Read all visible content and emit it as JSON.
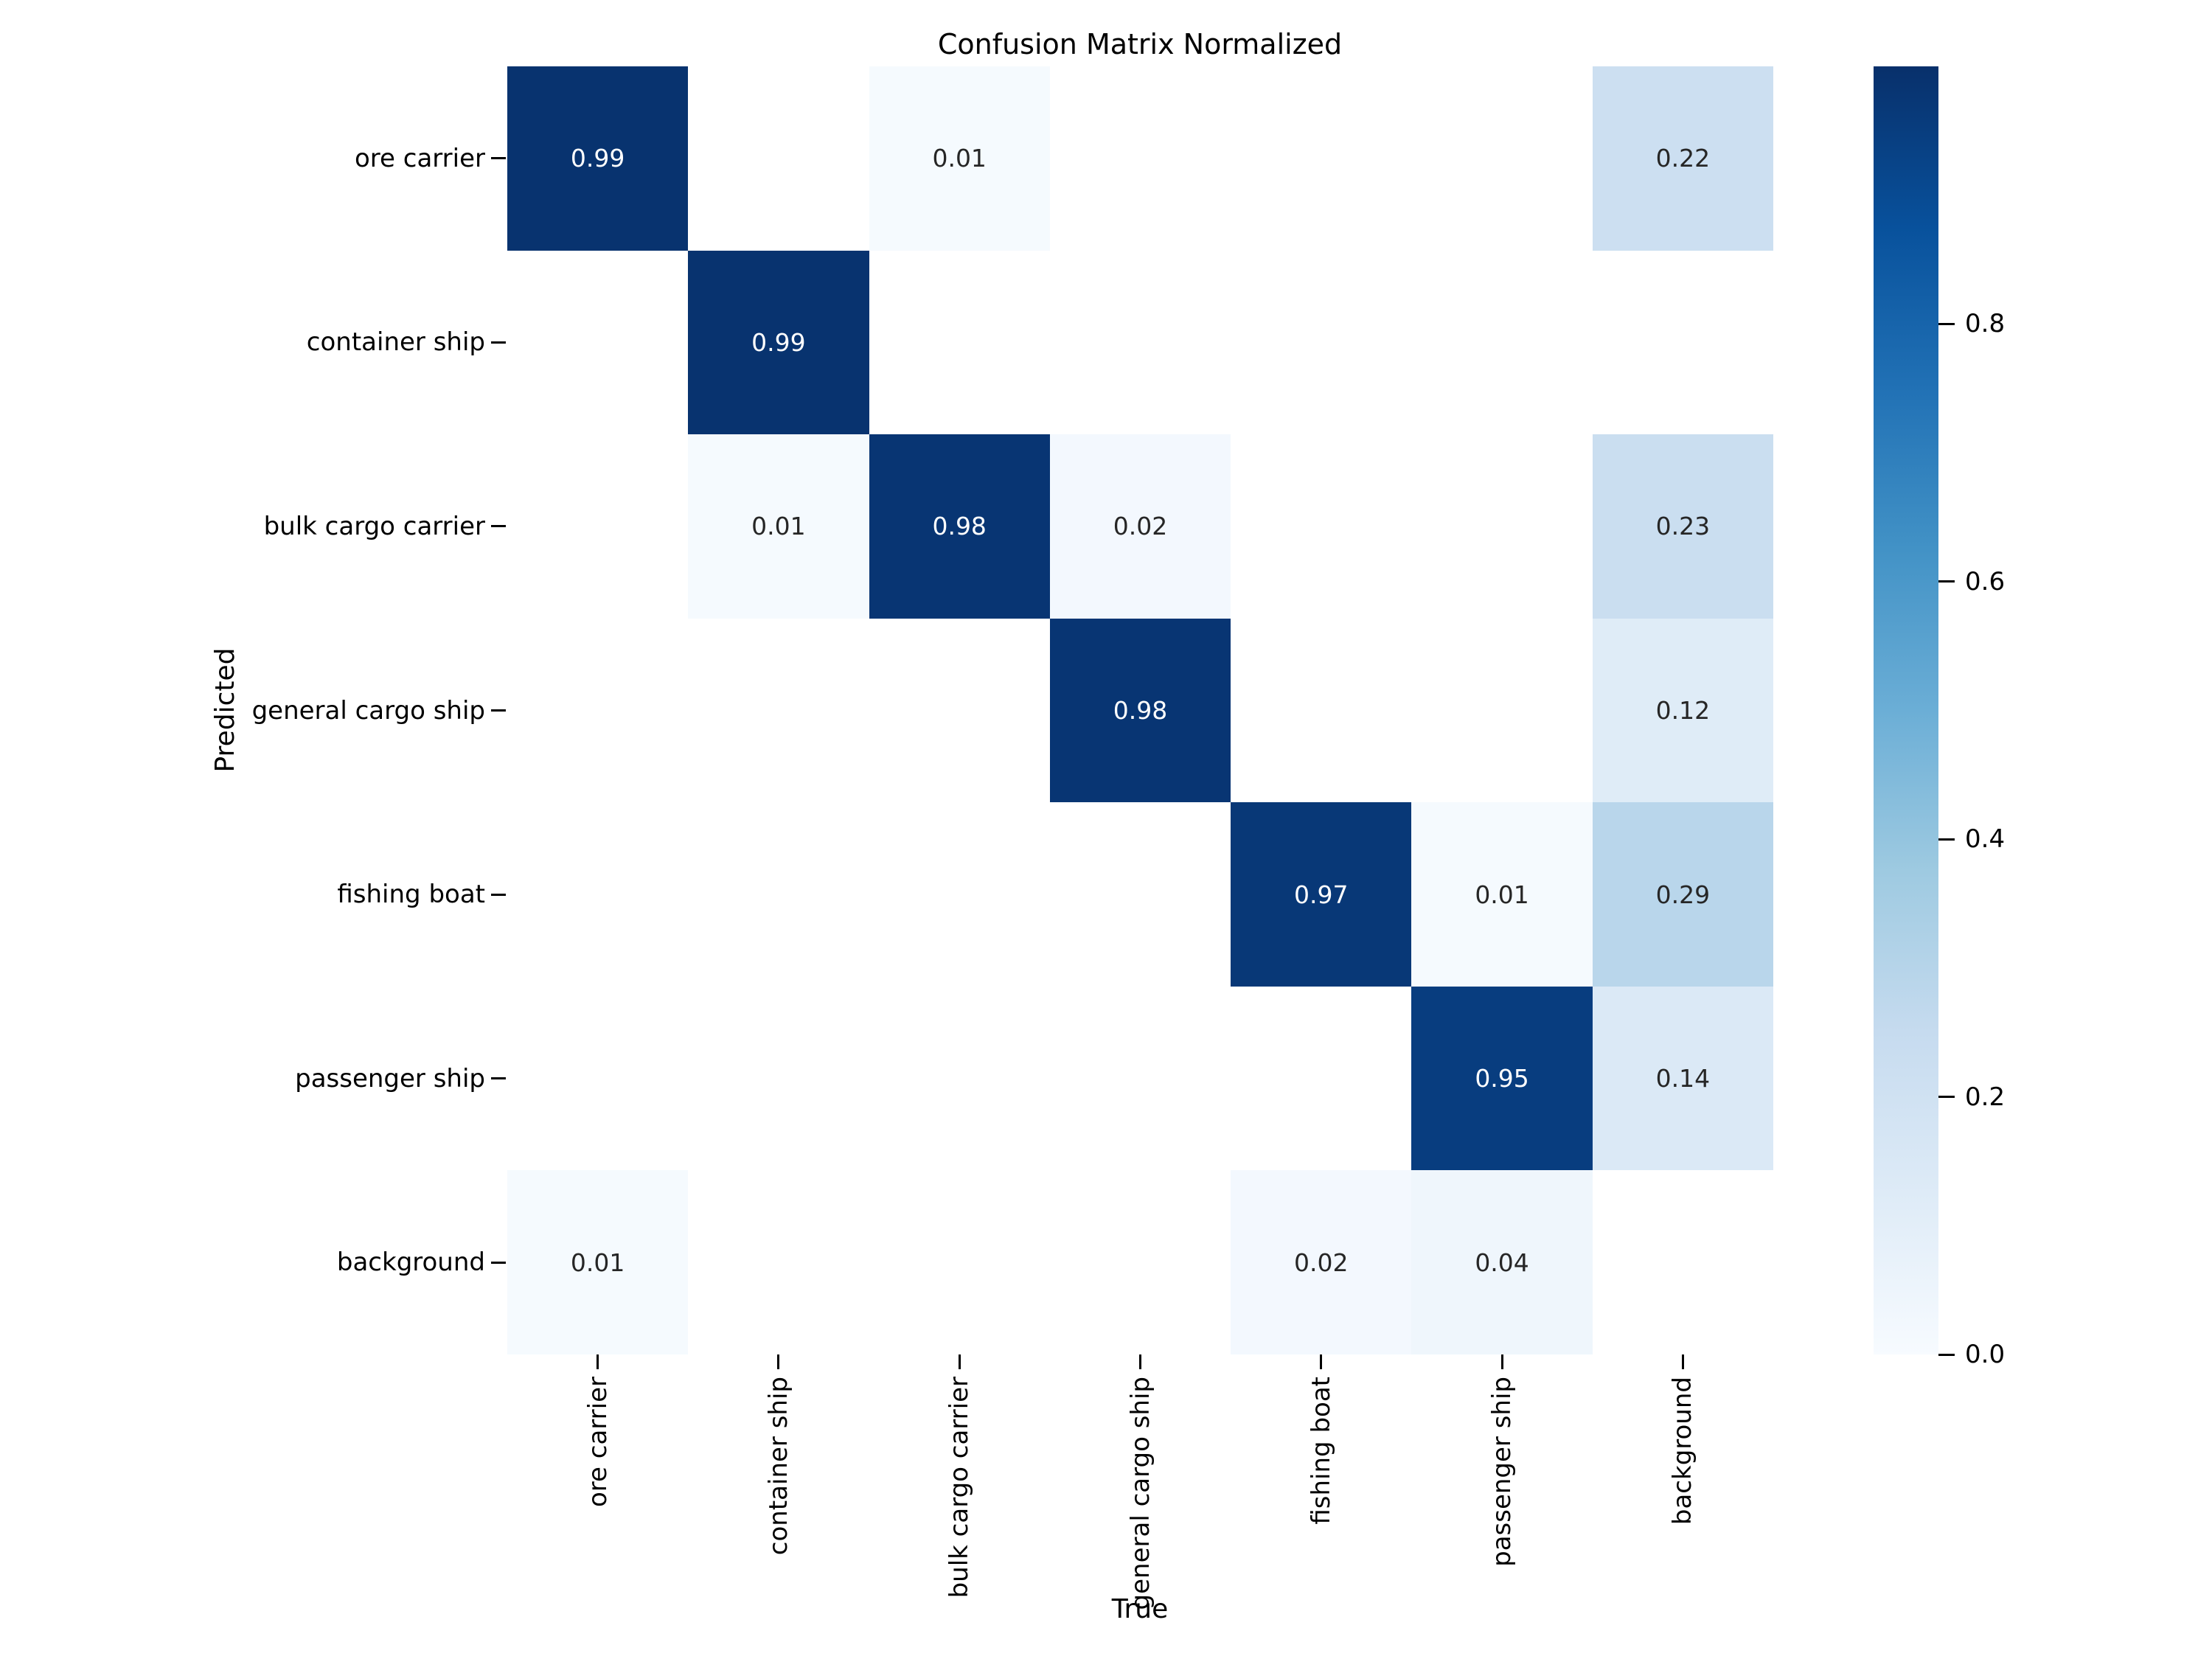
{
  "title": "Confusion Matrix Normalized",
  "chart_data": {
    "type": "heatmap",
    "title": "Confusion Matrix Normalized",
    "xlabel": "True",
    "ylabel": "Predicted",
    "x_categories": [
      "ore carrier",
      "container ship",
      "bulk cargo carrier",
      "general cargo ship",
      "fishing boat",
      "passenger ship",
      "background"
    ],
    "y_categories": [
      "ore carrier",
      "container ship",
      "bulk cargo carrier",
      "general cargo ship",
      "fishing boat",
      "passenger ship",
      "background"
    ],
    "matrix": [
      [
        0.99,
        null,
        0.01,
        null,
        null,
        null,
        0.22
      ],
      [
        null,
        0.99,
        null,
        null,
        null,
        null,
        null
      ],
      [
        null,
        0.01,
        0.98,
        0.02,
        null,
        null,
        0.23
      ],
      [
        null,
        null,
        null,
        0.98,
        null,
        null,
        0.12
      ],
      [
        null,
        null,
        null,
        null,
        0.97,
        0.01,
        0.29
      ],
      [
        null,
        null,
        null,
        null,
        null,
        0.95,
        0.14
      ],
      [
        0.01,
        null,
        null,
        null,
        0.02,
        0.04,
        null
      ]
    ],
    "colormap": "Blues",
    "vmin": 0.0,
    "vmax": 1.0,
    "colorbar_ticks": [
      0.8,
      0.6,
      0.4,
      0.2,
      0.0
    ],
    "legend_position": "right-colorbar",
    "grid": false,
    "masked_cell_color": "#ffffff",
    "colorbar_min_color": "#f7fbff",
    "colorbar_max_color": "#08306b",
    "colors": {
      "annotation_on_light": "#262626",
      "annotation_on_dark": "#ffffff",
      "axis_text": "#000000"
    }
  }
}
